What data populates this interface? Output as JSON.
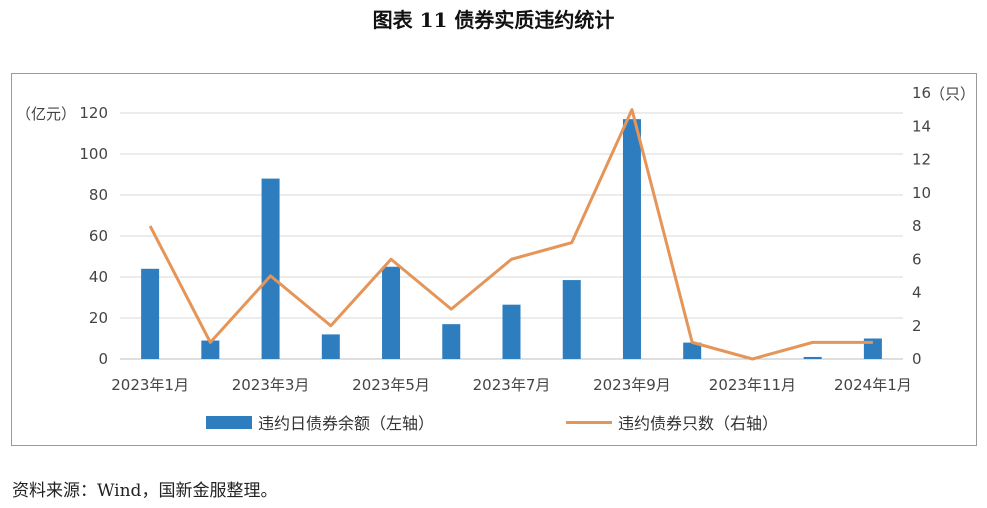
{
  "figure_title": "图表 11  债券实质违约统计",
  "source_note": "资料来源：Wind，国新金服整理。",
  "colors": {
    "bar": "#2e7ebf",
    "line": "#e59558",
    "grid": "#d9d9d9",
    "axis": "#bfbfbf"
  },
  "chart_data": {
    "type": "bar+line",
    "categories": [
      "2023年1月",
      "2023年2月",
      "2023年3月",
      "2023年4月",
      "2023年5月",
      "2023年6月",
      "2023年7月",
      "2023年8月",
      "2023年9月",
      "2023年10月",
      "2023年11月",
      "2023年12月",
      "2024年1月"
    ],
    "x_tick_labels": [
      "2023年1月",
      "2023年3月",
      "2023年5月",
      "2023年7月",
      "2023年9月",
      "2023年11月",
      "2024年1月"
    ],
    "left_axis": {
      "unit_label": "（亿元）",
      "min": 0,
      "max": 120,
      "ticks": [
        "0",
        "20",
        "40",
        "60",
        "80",
        "100",
        "120"
      ]
    },
    "right_axis": {
      "unit_label": "（只）",
      "min": 0,
      "max": 16,
      "ticks": [
        "0",
        "2",
        "4",
        "6",
        "8",
        "10",
        "12",
        "14",
        "16"
      ]
    },
    "series": [
      {
        "name": "违约日债券余额（左轴）",
        "type": "bar",
        "axis": "left",
        "values": [
          44,
          9,
          88,
          12,
          45,
          17,
          26.5,
          38.5,
          117,
          8,
          0,
          1,
          10
        ]
      },
      {
        "name": "违约债券只数（右轴）",
        "type": "line",
        "axis": "right",
        "values": [
          8,
          1,
          5,
          2,
          6,
          3,
          6,
          7,
          15,
          1,
          0,
          1,
          1
        ]
      }
    ],
    "grid": true,
    "legend_position": "bottom"
  }
}
